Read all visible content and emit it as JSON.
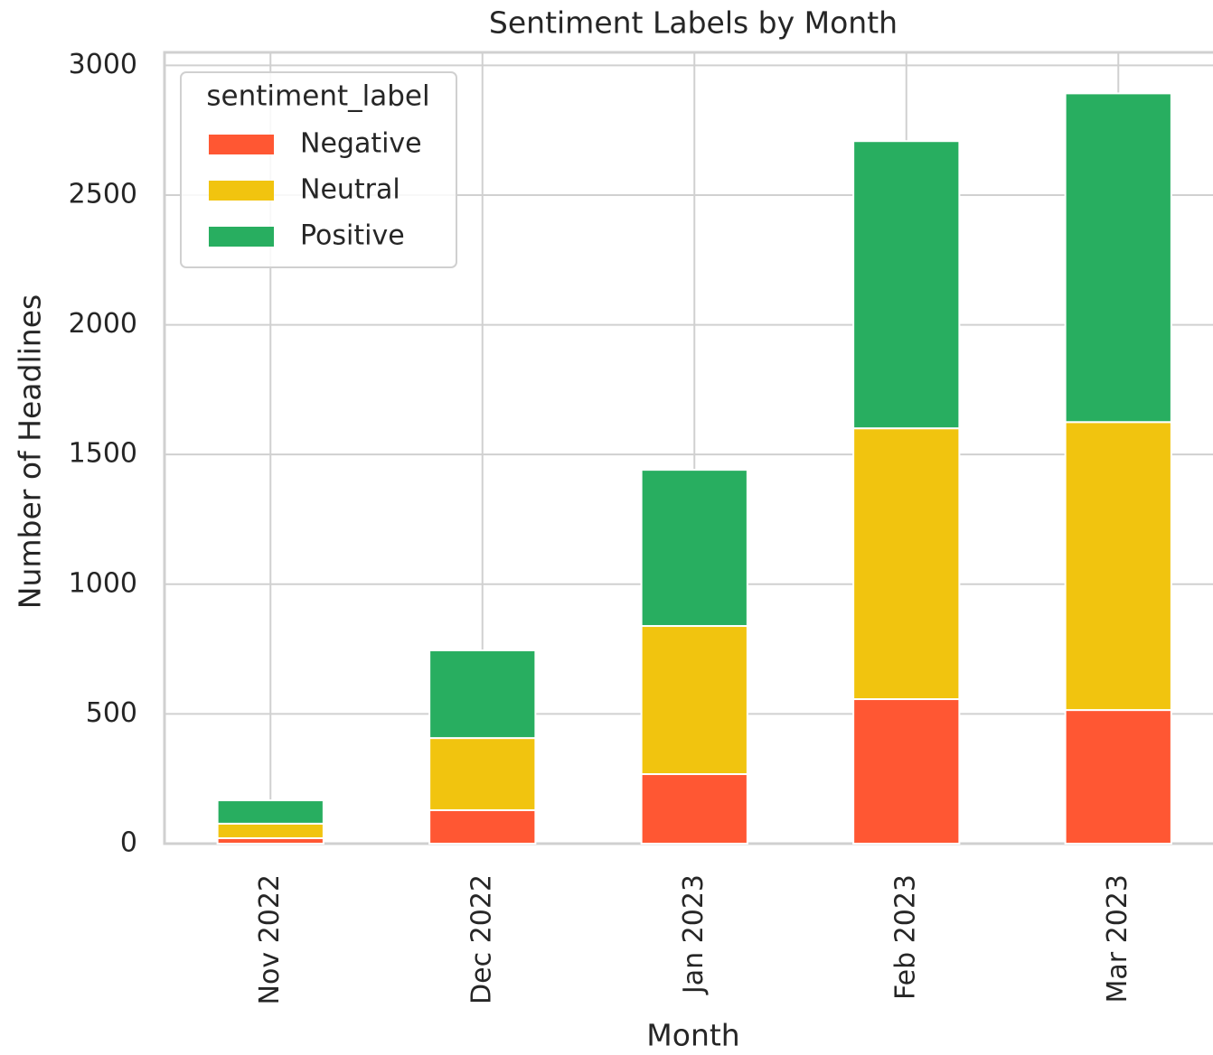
{
  "chart_data": {
    "type": "bar",
    "stacked": true,
    "title": "Sentiment Labels by Month",
    "xlabel": "Month",
    "ylabel": "Number of Headlines",
    "categories": [
      "Nov 2022",
      "Dec 2022",
      "Jan 2023",
      "Feb 2023",
      "Mar 2023"
    ],
    "series": [
      {
        "name": "Negative",
        "color": "#ff5733",
        "values": [
          21,
          129,
          268,
          557,
          515
        ]
      },
      {
        "name": "Neutral",
        "color": "#f1c40f",
        "values": [
          56,
          278,
          571,
          1044,
          1110
        ]
      },
      {
        "name": "Positive",
        "color": "#28ae60",
        "values": [
          90,
          338,
          602,
          1107,
          1267
        ]
      }
    ],
    "ylim": [
      0,
      3050
    ],
    "yticks": [
      0,
      500,
      1000,
      1500,
      2000,
      2500,
      3000
    ],
    "grid": true,
    "legend_title": "sentiment_label",
    "legend_position": "upper left"
  }
}
